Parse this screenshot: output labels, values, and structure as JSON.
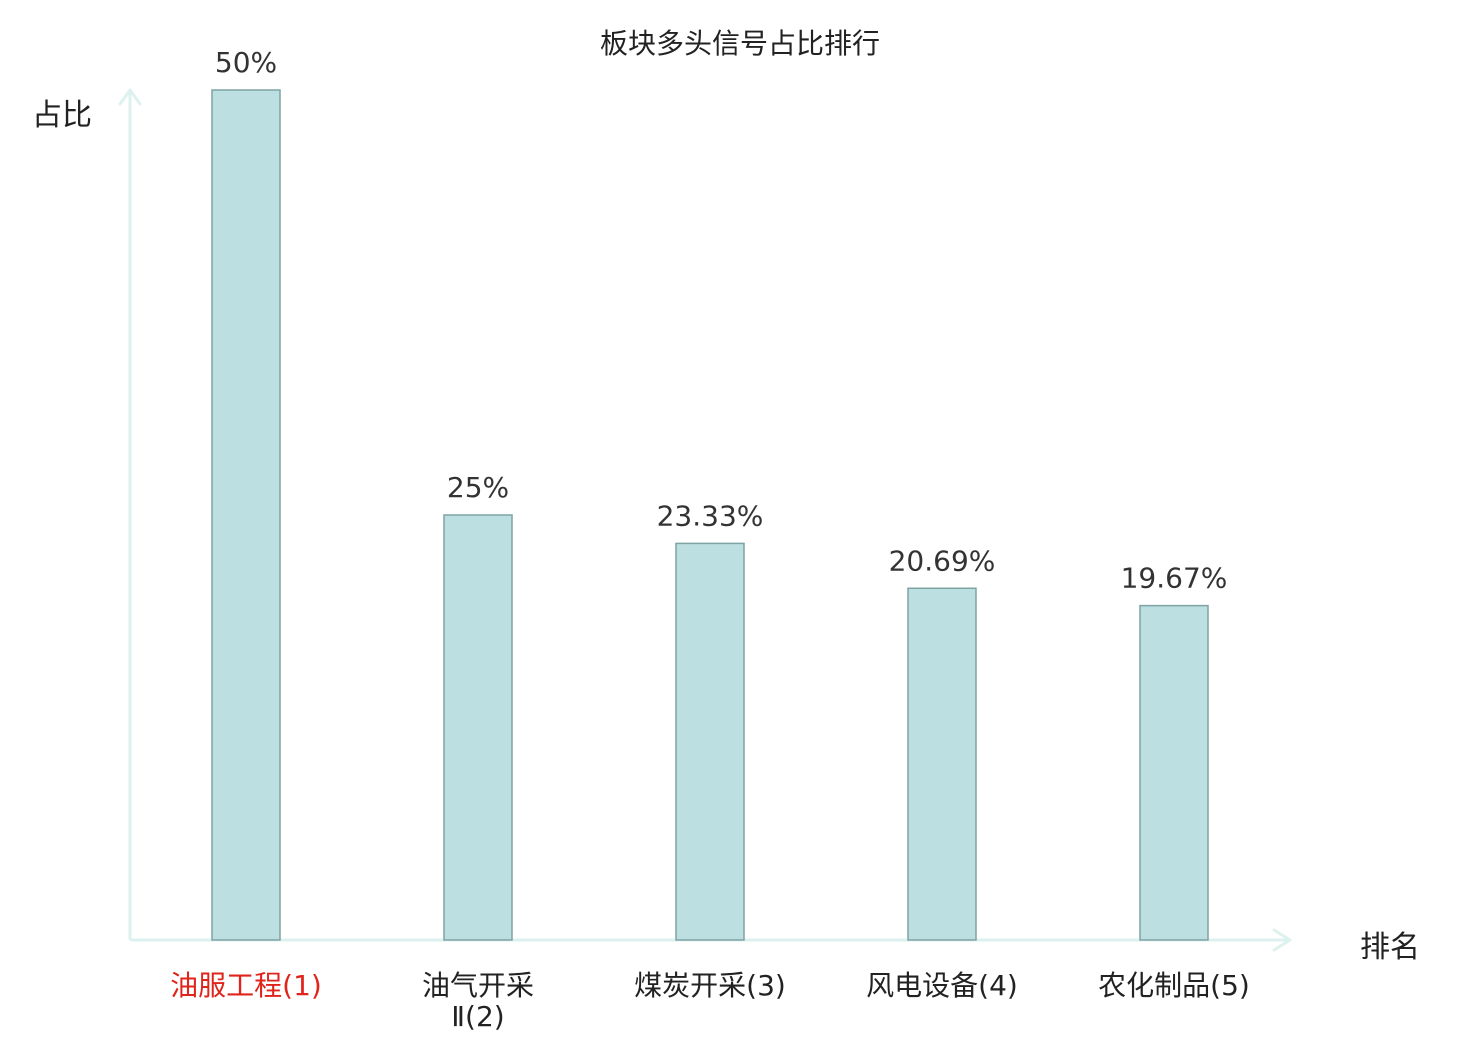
{
  "chart_data": {
    "type": "bar",
    "title": "板块多头信号占比排行",
    "xlabel": "排名",
    "ylabel": "占比",
    "categories": [
      {
        "line1": "油服工程(1)",
        "line2": ""
      },
      {
        "line1": "油气开采",
        "line2": "Ⅱ(2)"
      },
      {
        "line1": "煤炭开采(3)",
        "line2": ""
      },
      {
        "line1": "风电设备(4)",
        "line2": ""
      },
      {
        "line1": "农化制品(5)",
        "line2": ""
      }
    ],
    "values": [
      50,
      25,
      23.33,
      20.69,
      19.67
    ],
    "value_labels": [
      "50%",
      "25%",
      "23.33%",
      "20.69%",
      "19.67%"
    ],
    "ylim": [
      0,
      50
    ],
    "grid": false,
    "colors": {
      "bar_fill": "#bce0e1",
      "bar_stroke": "#7fa3a4",
      "axis": "#ddf2ef",
      "highlight_label": "#e0241c",
      "label": "#222222",
      "value_label": "#333333"
    }
  }
}
